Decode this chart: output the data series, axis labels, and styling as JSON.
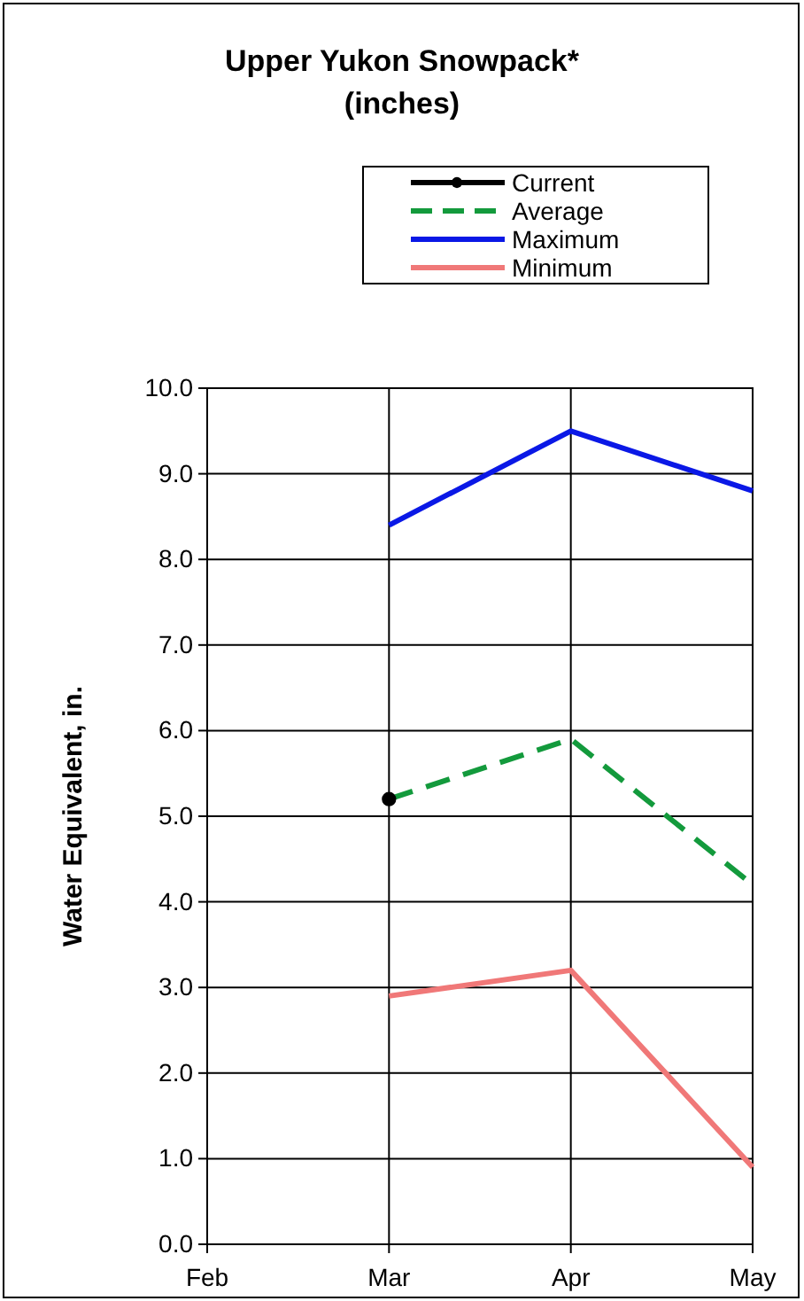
{
  "chart_data": {
    "type": "line",
    "title": "Upper Yukon Snowpack*",
    "subtitle": "(inches)",
    "ylabel": "Water Equivalent, in.",
    "categories": [
      "Feb",
      "Mar",
      "Apr",
      "May"
    ],
    "series": [
      {
        "name": "Current",
        "color": "#000000",
        "values": [
          null,
          5.2,
          null,
          null
        ],
        "marker": "circle",
        "line_style": "solid"
      },
      {
        "name": "Average",
        "color": "#139a3c",
        "values": [
          null,
          5.2,
          5.9,
          4.2
        ],
        "marker": "none",
        "line_style": "dashed"
      },
      {
        "name": "Maximum",
        "color": "#0a18e6",
        "values": [
          null,
          8.4,
          9.5,
          8.8
        ],
        "marker": "none",
        "line_style": "solid"
      },
      {
        "name": "Minimum",
        "color": "#f07878",
        "values": [
          null,
          2.9,
          3.2,
          0.9
        ],
        "marker": "none",
        "line_style": "solid"
      }
    ],
    "ylim": [
      0,
      10
    ],
    "yticks": [
      {
        "value": 0,
        "label": "0.0"
      },
      {
        "value": 1,
        "label": "1.0"
      },
      {
        "value": 2,
        "label": "2.0"
      },
      {
        "value": 3,
        "label": "3.0"
      },
      {
        "value": 4,
        "label": "4.0"
      },
      {
        "value": 5,
        "label": "5.0"
      },
      {
        "value": 6,
        "label": "6.0"
      },
      {
        "value": 7,
        "label": "7.0"
      },
      {
        "value": 8,
        "label": "8.0"
      },
      {
        "value": 9,
        "label": "9.0"
      },
      {
        "value": 10,
        "label": "10.0"
      }
    ],
    "grid": true,
    "legend": "top"
  }
}
